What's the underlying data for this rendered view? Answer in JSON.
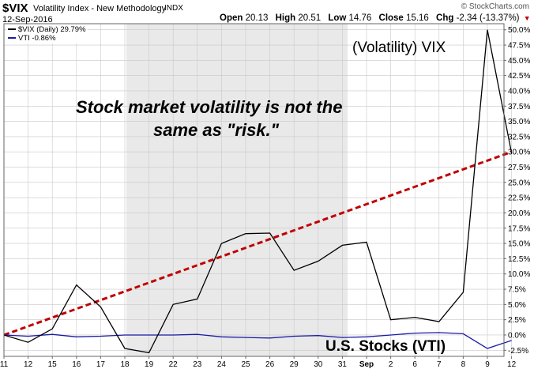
{
  "header": {
    "symbol": "$VIX",
    "name": "Volatility Index - New Methodology",
    "exchange": "INDX",
    "date": "12-Sep-2016",
    "brand": "© StockCharts.com",
    "ohlc": {
      "open_label": "Open",
      "open": "20.13",
      "high_label": "High",
      "high": "20.51",
      "low_label": "Low",
      "low": "14.76",
      "close_label": "Close",
      "close": "15.16",
      "chg_label": "Chg",
      "chg": "-2.34 (-13.37%)",
      "chg_arrow": "▼"
    }
  },
  "legend": {
    "vix": "$VIX (Daily) 29.79%",
    "vti": "VTI -0.86%"
  },
  "annotations": {
    "vix": "(Volatility) VIX",
    "risk_line1": "Stock market volatility is not the",
    "risk_line2": "same as \"risk.\"",
    "vti": "U.S. Stocks (VTI)"
  },
  "colors": {
    "vix_line": "#000000",
    "vti_line": "#1a1aa6",
    "trend_line": "#c00000",
    "bg_shade": "#e9e9e9",
    "grid": "#c8c8c8"
  },
  "chart_data": {
    "type": "line",
    "categories": [
      "11",
      "12",
      "15",
      "16",
      "17",
      "18",
      "19",
      "22",
      "23",
      "24",
      "25",
      "26",
      "29",
      "30",
      "31",
      "Sep",
      "2",
      "6",
      "7",
      "8",
      "9",
      "12"
    ],
    "series": [
      {
        "name": "$VIX (Daily) 29.79%",
        "values": [
          0.0,
          -1.2,
          1.0,
          8.2,
          4.6,
          -2.2,
          -2.9,
          5.0,
          5.9,
          15.0,
          16.6,
          16.7,
          10.6,
          12.1,
          14.7,
          15.2,
          2.5,
          2.9,
          2.2,
          7.0,
          50.0,
          29.8
        ]
      },
      {
        "name": "VTI -0.86%",
        "values": [
          0.0,
          -0.2,
          0.1,
          -0.3,
          -0.2,
          0.0,
          0.0,
          0.0,
          0.1,
          -0.3,
          -0.4,
          -0.5,
          -0.2,
          -0.1,
          -0.4,
          -0.3,
          0.0,
          0.3,
          0.4,
          0.2,
          -2.2,
          -0.9
        ]
      }
    ],
    "trend_line": {
      "from": [
        0,
        0.0
      ],
      "to": [
        21,
        30.0
      ]
    },
    "y_ticks": [
      "-2.5%",
      "0.0%",
      "2.5%",
      "5.0%",
      "7.5%",
      "10.0%",
      "12.5%",
      "15.0%",
      "17.5%",
      "20.0%",
      "22.5%",
      "25.0%",
      "27.5%",
      "30.0%",
      "32.5%",
      "35.0%",
      "37.5%",
      "40.0%",
      "42.5%",
      "45.0%",
      "47.5%",
      "50.0%"
    ],
    "ylim": [
      -3.5,
      51
    ],
    "y_axis_side": "right",
    "grid": true
  }
}
